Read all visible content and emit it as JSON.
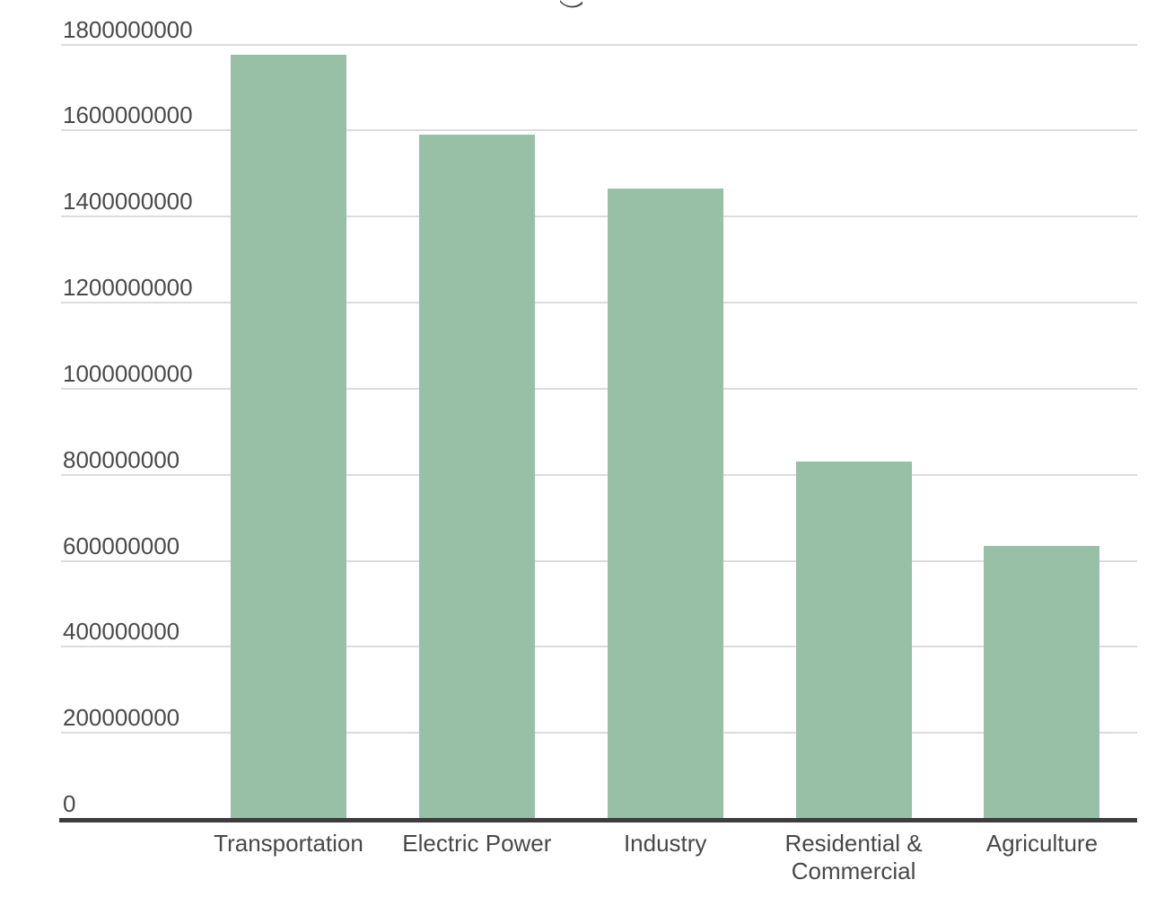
{
  "chart_data": {
    "type": "bar",
    "title": "",
    "title_cut_off": true,
    "xlabel": "",
    "ylabel": "",
    "categories": [
      "Transportation",
      "Electric Power",
      "Industry",
      "Residential & Commercial",
      "Agriculture"
    ],
    "values": [
      1775000000,
      1590000000,
      1465000000,
      830000000,
      635000000
    ],
    "ylim": [
      0,
      1800000000
    ],
    "ytick_values": [
      0,
      200000000,
      400000000,
      600000000,
      800000000,
      1000000000,
      1200000000,
      1400000000,
      1600000000,
      1800000000
    ],
    "ytick_labels": [
      "0",
      "200000000",
      "400000000",
      "600000000",
      "800000000",
      "1000000000",
      "1200000000",
      "1400000000",
      "1600000000",
      "1800000000"
    ],
    "grid": true,
    "legend_position": "none",
    "colors": {
      "bar": "#97C0A7",
      "gridline": "#dcdcdc",
      "axis": "#3d3d3d",
      "tick_label": "#4a4a4a",
      "category_label": "#484848",
      "background": "#ffffff",
      "title_fragment": "#3a3a3a"
    }
  }
}
